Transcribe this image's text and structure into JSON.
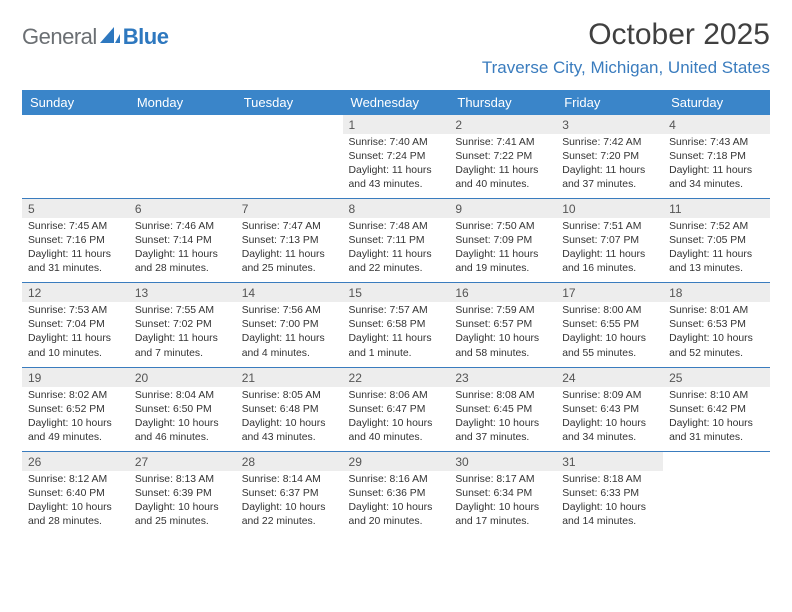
{
  "brand": {
    "name_a": "General",
    "name_b": "Blue"
  },
  "header": {
    "month_title": "October 2025",
    "location": "Traverse City, Michigan, United States"
  },
  "colors": {
    "header_bg": "#3a85c9",
    "header_fg": "#ffffff",
    "accent_line": "#3a7cbe",
    "daynum_bg": "#ededed",
    "logo_grey": "#6b6f73",
    "logo_blue": "#2e78bf"
  },
  "weekdays": [
    "Sunday",
    "Monday",
    "Tuesday",
    "Wednesday",
    "Thursday",
    "Friday",
    "Saturday"
  ],
  "weeks": [
    [
      null,
      null,
      null,
      {
        "n": "1",
        "sr": "Sunrise: 7:40 AM",
        "ss": "Sunset: 7:24 PM",
        "dl1": "Daylight: 11 hours",
        "dl2": "and 43 minutes."
      },
      {
        "n": "2",
        "sr": "Sunrise: 7:41 AM",
        "ss": "Sunset: 7:22 PM",
        "dl1": "Daylight: 11 hours",
        "dl2": "and 40 minutes."
      },
      {
        "n": "3",
        "sr": "Sunrise: 7:42 AM",
        "ss": "Sunset: 7:20 PM",
        "dl1": "Daylight: 11 hours",
        "dl2": "and 37 minutes."
      },
      {
        "n": "4",
        "sr": "Sunrise: 7:43 AM",
        "ss": "Sunset: 7:18 PM",
        "dl1": "Daylight: 11 hours",
        "dl2": "and 34 minutes."
      }
    ],
    [
      {
        "n": "5",
        "sr": "Sunrise: 7:45 AM",
        "ss": "Sunset: 7:16 PM",
        "dl1": "Daylight: 11 hours",
        "dl2": "and 31 minutes."
      },
      {
        "n": "6",
        "sr": "Sunrise: 7:46 AM",
        "ss": "Sunset: 7:14 PM",
        "dl1": "Daylight: 11 hours",
        "dl2": "and 28 minutes."
      },
      {
        "n": "7",
        "sr": "Sunrise: 7:47 AM",
        "ss": "Sunset: 7:13 PM",
        "dl1": "Daylight: 11 hours",
        "dl2": "and 25 minutes."
      },
      {
        "n": "8",
        "sr": "Sunrise: 7:48 AM",
        "ss": "Sunset: 7:11 PM",
        "dl1": "Daylight: 11 hours",
        "dl2": "and 22 minutes."
      },
      {
        "n": "9",
        "sr": "Sunrise: 7:50 AM",
        "ss": "Sunset: 7:09 PM",
        "dl1": "Daylight: 11 hours",
        "dl2": "and 19 minutes."
      },
      {
        "n": "10",
        "sr": "Sunrise: 7:51 AM",
        "ss": "Sunset: 7:07 PM",
        "dl1": "Daylight: 11 hours",
        "dl2": "and 16 minutes."
      },
      {
        "n": "11",
        "sr": "Sunrise: 7:52 AM",
        "ss": "Sunset: 7:05 PM",
        "dl1": "Daylight: 11 hours",
        "dl2": "and 13 minutes."
      }
    ],
    [
      {
        "n": "12",
        "sr": "Sunrise: 7:53 AM",
        "ss": "Sunset: 7:04 PM",
        "dl1": "Daylight: 11 hours",
        "dl2": "and 10 minutes."
      },
      {
        "n": "13",
        "sr": "Sunrise: 7:55 AM",
        "ss": "Sunset: 7:02 PM",
        "dl1": "Daylight: 11 hours",
        "dl2": "and 7 minutes."
      },
      {
        "n": "14",
        "sr": "Sunrise: 7:56 AM",
        "ss": "Sunset: 7:00 PM",
        "dl1": "Daylight: 11 hours",
        "dl2": "and 4 minutes."
      },
      {
        "n": "15",
        "sr": "Sunrise: 7:57 AM",
        "ss": "Sunset: 6:58 PM",
        "dl1": "Daylight: 11 hours",
        "dl2": "and 1 minute."
      },
      {
        "n": "16",
        "sr": "Sunrise: 7:59 AM",
        "ss": "Sunset: 6:57 PM",
        "dl1": "Daylight: 10 hours",
        "dl2": "and 58 minutes."
      },
      {
        "n": "17",
        "sr": "Sunrise: 8:00 AM",
        "ss": "Sunset: 6:55 PM",
        "dl1": "Daylight: 10 hours",
        "dl2": "and 55 minutes."
      },
      {
        "n": "18",
        "sr": "Sunrise: 8:01 AM",
        "ss": "Sunset: 6:53 PM",
        "dl1": "Daylight: 10 hours",
        "dl2": "and 52 minutes."
      }
    ],
    [
      {
        "n": "19",
        "sr": "Sunrise: 8:02 AM",
        "ss": "Sunset: 6:52 PM",
        "dl1": "Daylight: 10 hours",
        "dl2": "and 49 minutes."
      },
      {
        "n": "20",
        "sr": "Sunrise: 8:04 AM",
        "ss": "Sunset: 6:50 PM",
        "dl1": "Daylight: 10 hours",
        "dl2": "and 46 minutes."
      },
      {
        "n": "21",
        "sr": "Sunrise: 8:05 AM",
        "ss": "Sunset: 6:48 PM",
        "dl1": "Daylight: 10 hours",
        "dl2": "and 43 minutes."
      },
      {
        "n": "22",
        "sr": "Sunrise: 8:06 AM",
        "ss": "Sunset: 6:47 PM",
        "dl1": "Daylight: 10 hours",
        "dl2": "and 40 minutes."
      },
      {
        "n": "23",
        "sr": "Sunrise: 8:08 AM",
        "ss": "Sunset: 6:45 PM",
        "dl1": "Daylight: 10 hours",
        "dl2": "and 37 minutes."
      },
      {
        "n": "24",
        "sr": "Sunrise: 8:09 AM",
        "ss": "Sunset: 6:43 PM",
        "dl1": "Daylight: 10 hours",
        "dl2": "and 34 minutes."
      },
      {
        "n": "25",
        "sr": "Sunrise: 8:10 AM",
        "ss": "Sunset: 6:42 PM",
        "dl1": "Daylight: 10 hours",
        "dl2": "and 31 minutes."
      }
    ],
    [
      {
        "n": "26",
        "sr": "Sunrise: 8:12 AM",
        "ss": "Sunset: 6:40 PM",
        "dl1": "Daylight: 10 hours",
        "dl2": "and 28 minutes."
      },
      {
        "n": "27",
        "sr": "Sunrise: 8:13 AM",
        "ss": "Sunset: 6:39 PM",
        "dl1": "Daylight: 10 hours",
        "dl2": "and 25 minutes."
      },
      {
        "n": "28",
        "sr": "Sunrise: 8:14 AM",
        "ss": "Sunset: 6:37 PM",
        "dl1": "Daylight: 10 hours",
        "dl2": "and 22 minutes."
      },
      {
        "n": "29",
        "sr": "Sunrise: 8:16 AM",
        "ss": "Sunset: 6:36 PM",
        "dl1": "Daylight: 10 hours",
        "dl2": "and 20 minutes."
      },
      {
        "n": "30",
        "sr": "Sunrise: 8:17 AM",
        "ss": "Sunset: 6:34 PM",
        "dl1": "Daylight: 10 hours",
        "dl2": "and 17 minutes."
      },
      {
        "n": "31",
        "sr": "Sunrise: 8:18 AM",
        "ss": "Sunset: 6:33 PM",
        "dl1": "Daylight: 10 hours",
        "dl2": "and 14 minutes."
      },
      null
    ]
  ]
}
